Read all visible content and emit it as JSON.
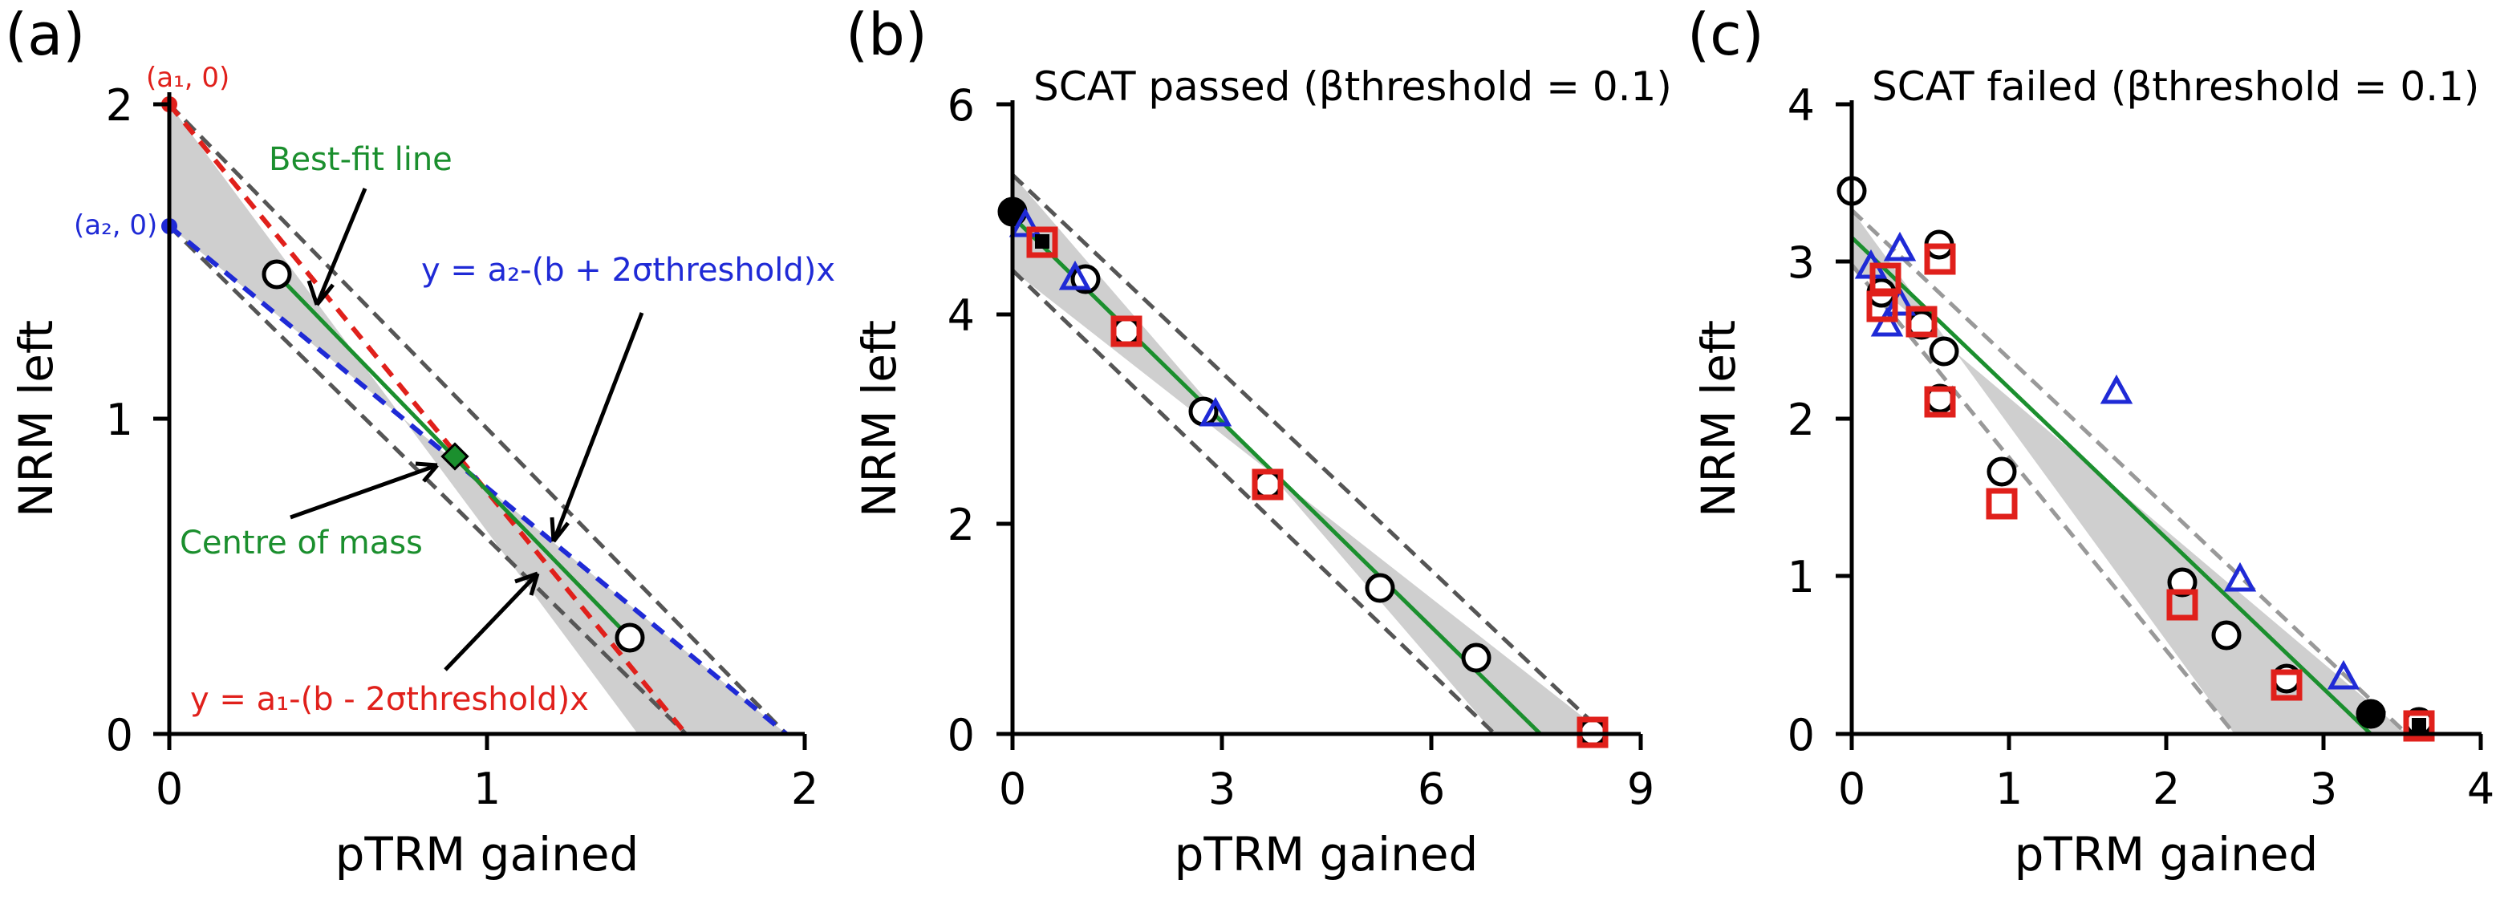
{
  "chart_data": [
    {
      "type": "scatter",
      "panel_label": "(a)",
      "xlabel": "pTRM gained",
      "ylabel": "NRM left",
      "xlim": [
        0,
        2
      ],
      "ylim": [
        0,
        2
      ],
      "xticks": [
        0,
        1,
        2
      ],
      "yticks": [
        0,
        1,
        2
      ],
      "band": {
        "y_intercept_upper": 2.0,
        "y_intercept_lower": 1.6,
        "x_intercept_upper": 1.95,
        "x_intercept_lower": 1.6
      },
      "best_fit": {
        "x": [
          0.35,
          1.45
        ],
        "y": [
          1.45,
          0.3
        ]
      },
      "points_circle_open": {
        "x": [
          0.34,
          1.45
        ],
        "y": [
          1.44,
          0.3
        ]
      },
      "centre_of_mass": {
        "x": 0.89,
        "y": 0.88
      },
      "red_line": {
        "x": [
          0,
          1.62
        ],
        "y": [
          2.0,
          0
        ]
      },
      "blue_line": {
        "x": [
          0,
          1.95
        ],
        "y": [
          1.6,
          0
        ]
      },
      "annotations": {
        "a1": "(a₁, 0)",
        "a2": "(a₂, 0)",
        "best_fit": "Best-fit line",
        "centre": "Centre of mass",
        "blue_eq": "y = a₂-(b + 2σthreshold)x",
        "red_eq": "y = a₁-(b - 2σthreshold)x"
      }
    },
    {
      "type": "scatter",
      "panel_label": "(b)",
      "title": "SCAT passed (βthreshold = 0.1)",
      "xlabel": "pTRM gained",
      "ylabel": "NRM left",
      "xlim": [
        0,
        9
      ],
      "ylim": [
        0,
        6
      ],
      "xticks": [
        0,
        3,
        6,
        9
      ],
      "yticks": [
        0,
        2,
        4,
        6
      ],
      "band": {
        "y_upper": 5.3,
        "y_lower": 4.4,
        "x_upper": 8.2,
        "x_lower": 6.7
      },
      "best_fit": {
        "x": [
          0,
          7.5
        ],
        "y": [
          4.85,
          0
        ]
      },
      "points_circle_filled": {
        "x": [
          0,
          0.45
        ],
        "y": [
          4.95,
          4.65
        ]
      },
      "points_circle_open": {
        "x": [
          0.95,
          1.65,
          2.7,
          3.6,
          5.25,
          6.65,
          8.3
        ],
        "y": [
          4.3,
          3.8,
          3.05,
          2.35,
          1.38,
          0.72,
          0.02
        ]
      },
      "points_triangle": {
        "x": [
          0.15,
          0.85,
          2.9
        ],
        "y": [
          4.85,
          4.35,
          3.05
        ]
      },
      "points_square": {
        "x": [
          0.45,
          1.65,
          3.6,
          8.3
        ],
        "y": [
          4.65,
          3.8,
          2.35,
          0.02
        ]
      }
    },
    {
      "type": "scatter",
      "panel_label": "(c)",
      "title": "SCAT failed (βthreshold = 0.1)",
      "xlabel": "pTRM gained",
      "ylabel": "NRM left",
      "xlim": [
        0,
        4
      ],
      "ylim": [
        0,
        4
      ],
      "xticks": [
        0,
        1,
        2,
        3,
        4
      ],
      "yticks": [
        0,
        1,
        2,
        3,
        4
      ],
      "band": {
        "y_upper": 3.3,
        "y_lower": 2.95,
        "x_upper": 3.55,
        "x_lower": 2.45
      },
      "best_fit": {
        "x": [
          0,
          3.3
        ],
        "y": [
          3.15,
          0
        ]
      },
      "points_circle_open": {
        "x": [
          0,
          0.18,
          0.45,
          0.55,
          0.58,
          0.56,
          0.95,
          2.1,
          2.38,
          2.75,
          3.6
        ],
        "y": [
          3.42,
          2.8,
          2.6,
          3.06,
          2.42,
          2.12,
          1.66,
          0.96,
          0.62,
          0.35,
          0.08
        ]
      },
      "points_circle_filled": {
        "x": [
          3.3
        ],
        "y": [
          0.13
        ]
      },
      "points_triangle": {
        "x": [
          0.12,
          0.3,
          0.22,
          0.3,
          1.67,
          2.43,
          3.1
        ],
        "y": [
          2.96,
          3.07,
          2.6,
          2.72,
          2.16,
          0.98,
          0.37
        ]
      },
      "points_square": {
        "x": [
          0.2,
          0.2,
          0.45,
          0.56,
          0.56,
          0.95,
          2.1,
          2.75,
          3.6
        ],
        "y": [
          2.88,
          2.7,
          2.6,
          2.98,
          2.08,
          1.44,
          0.82,
          0.3,
          0.05
        ]
      }
    }
  ]
}
